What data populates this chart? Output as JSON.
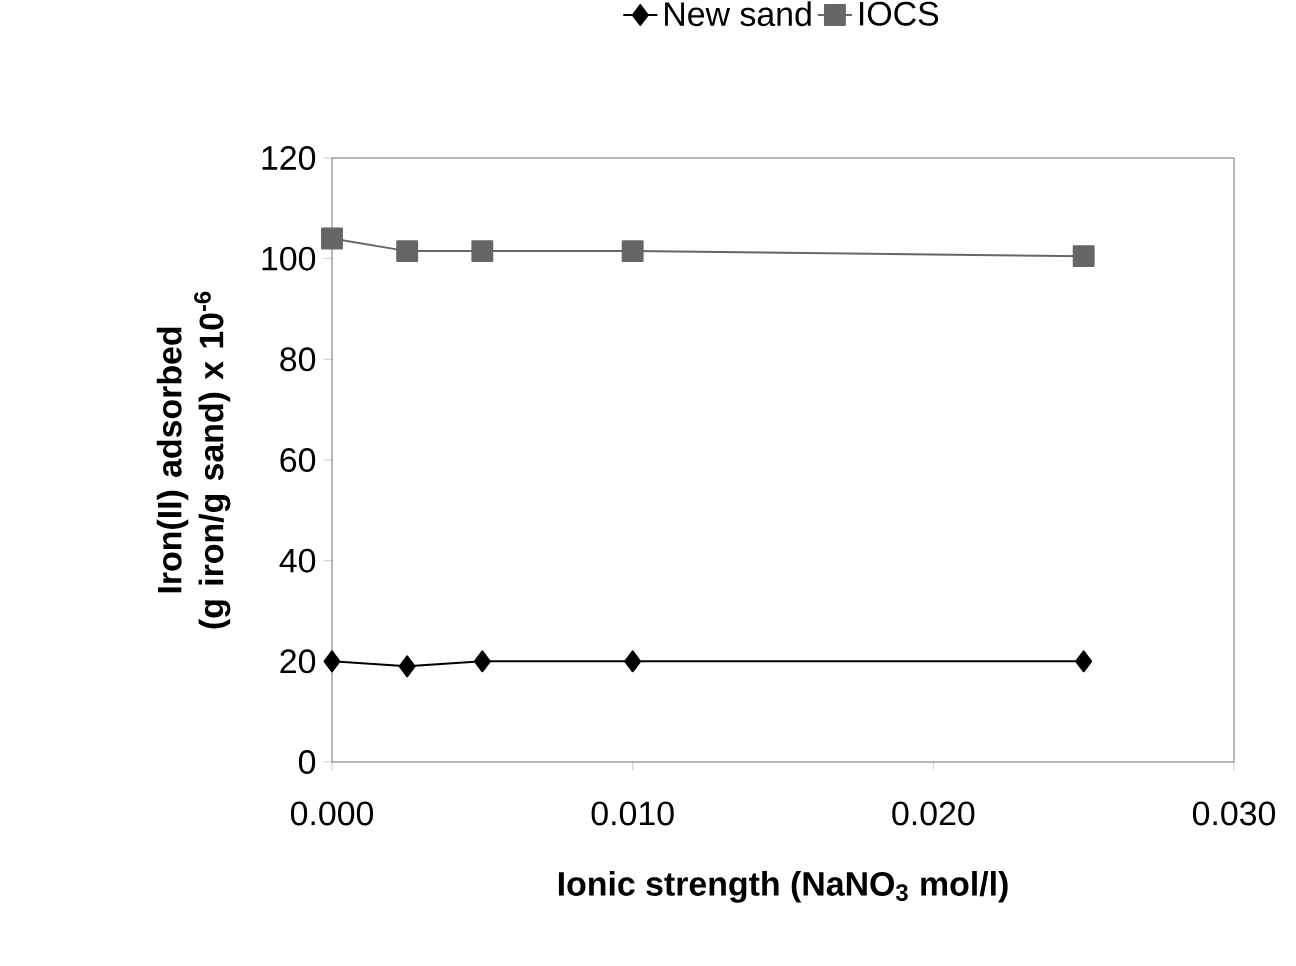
{
  "chart_data": {
    "type": "line",
    "xlabel": "Ionic strength (NaNO$_{3}$ mol/l)",
    "ylabel": "Iron(II) adsorbed\n(g iron/g sand) x 10$^{-6}$",
    "x": [
      0.0,
      0.0025,
      0.005,
      0.01,
      0.025
    ],
    "series": [
      {
        "name": "New sand",
        "color": "#000000",
        "marker": "diamond",
        "values": [
          20,
          19,
          20,
          20,
          20
        ]
      },
      {
        "name": "IOCS",
        "color": "#666666",
        "marker": "square",
        "values": [
          104,
          101.5,
          101.5,
          101.5,
          100.5
        ]
      }
    ],
    "xlim": [
      0,
      0.03
    ],
    "xticks": [
      {
        "value": 0,
        "label": "0.000"
      },
      {
        "value": 0.01,
        "label": "0.010"
      },
      {
        "value": 0.02,
        "label": "0.020"
      },
      {
        "value": 0.03,
        "label": "0.030"
      }
    ],
    "ylim": [
      0,
      120
    ],
    "yticks": [
      0,
      20,
      40,
      60,
      80,
      100,
      120
    ],
    "grid": false,
    "legend": "top",
    "line_style": "solid"
  }
}
